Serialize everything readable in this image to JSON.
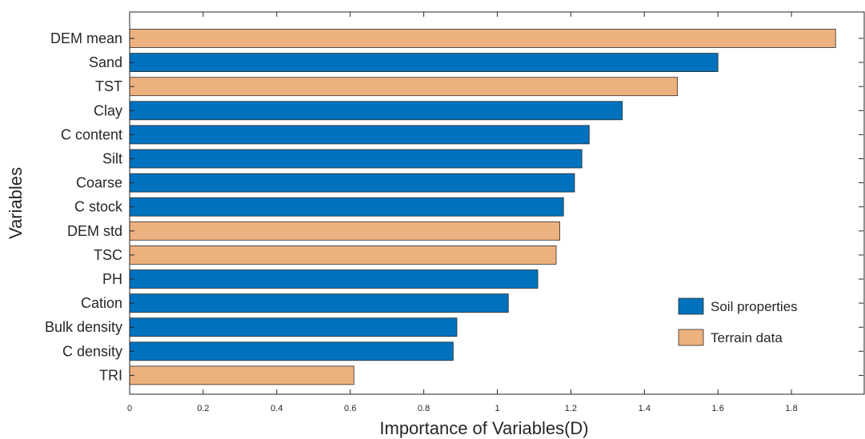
{
  "chart_data": {
    "type": "bar",
    "orientation": "horizontal",
    "categories": [
      "DEM mean",
      "Sand",
      "TST",
      "Clay",
      "C content",
      "Silt",
      "Coarse",
      "C stock",
      "DEM std",
      "TSC",
      "PH",
      "Cation",
      "Bulk density",
      "C density",
      "TRI"
    ],
    "values": [
      1.92,
      1.6,
      1.49,
      1.34,
      1.25,
      1.23,
      1.21,
      1.18,
      1.17,
      1.16,
      1.11,
      1.03,
      0.89,
      0.88,
      0.61
    ],
    "groups": [
      "Terrain data",
      "Soil properties",
      "Terrain data",
      "Soil properties",
      "Soil properties",
      "Soil properties",
      "Soil properties",
      "Soil properties",
      "Terrain data",
      "Terrain data",
      "Soil properties",
      "Soil properties",
      "Soil properties",
      "Soil properties",
      "Terrain data"
    ],
    "legend": [
      {
        "name": "Soil properties",
        "color": "#0072BD"
      },
      {
        "name": "Terrain data",
        "color": "#EDB17F"
      }
    ],
    "legend_position": "bottom-right",
    "xlabel": "Importance of Variables(D)",
    "ylabel": "Variables",
    "xlim": [
      0,
      2.0
    ],
    "xticks": [
      0,
      0.2,
      0.4,
      0.6,
      0.8,
      1,
      1.2,
      1.4,
      1.6,
      1.8
    ],
    "xtick_labels": [
      "0",
      "0.2",
      "0.4",
      "0.6",
      "0.8",
      "1",
      "1.2",
      "1.4",
      "1.6",
      "1.8"
    ],
    "grid": false
  }
}
